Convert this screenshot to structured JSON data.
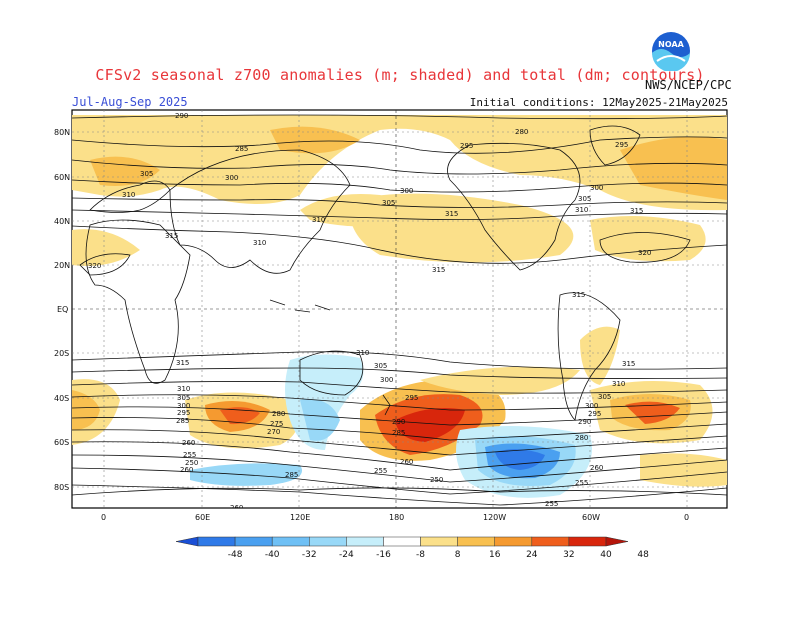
{
  "header": {
    "title": "CFSv2 seasonal z700 anomalies (m; shaded) and total (dm; contours)",
    "season": "Jul-Aug-Sep 2025",
    "initial_conditions": "Initial conditions: 12May2025-21May2025",
    "agency": "NWS/NCEP/CPC",
    "logo_text": "NOAA"
  },
  "map": {
    "lat_labels": [
      "80N",
      "60N",
      "40N",
      "20N",
      "EQ",
      "20S",
      "40S",
      "60S",
      "80S"
    ],
    "lon_labels": [
      "0",
      "60E",
      "120E",
      "180",
      "120W",
      "60W",
      "0"
    ],
    "contour_values": [
      "290",
      "285",
      "280",
      "295",
      "300",
      "305",
      "310",
      "315",
      "320",
      "305",
      "310",
      "315",
      "320",
      "315",
      "315",
      "320",
      "310",
      "315",
      "315",
      "310",
      "305",
      "300",
      "295",
      "290",
      "285",
      "280",
      "275",
      "270",
      "265",
      "260",
      "255",
      "250",
      "285",
      "260",
      "255",
      "260",
      "250",
      "255",
      "255",
      "265",
      "260",
      "250",
      "255",
      "310",
      "305",
      "300",
      "295",
      "290",
      "285",
      "280",
      "275",
      "315",
      "310",
      "305",
      "300",
      "295",
      "290"
    ]
  },
  "colorbar": {
    "ticks": [
      "-48",
      "-40",
      "-32",
      "-24",
      "-16",
      "-8",
      "8",
      "16",
      "24",
      "32",
      "40",
      "48"
    ],
    "colors": [
      "#1a4fd6",
      "#2f7ae8",
      "#4aa0f0",
      "#6fc0f5",
      "#98d8f7",
      "#c6eefa",
      "#ffffff",
      "#fbe08a",
      "#f8c050",
      "#f59a30",
      "#ef5e1c",
      "#d8260c",
      "#b5150a"
    ]
  }
}
